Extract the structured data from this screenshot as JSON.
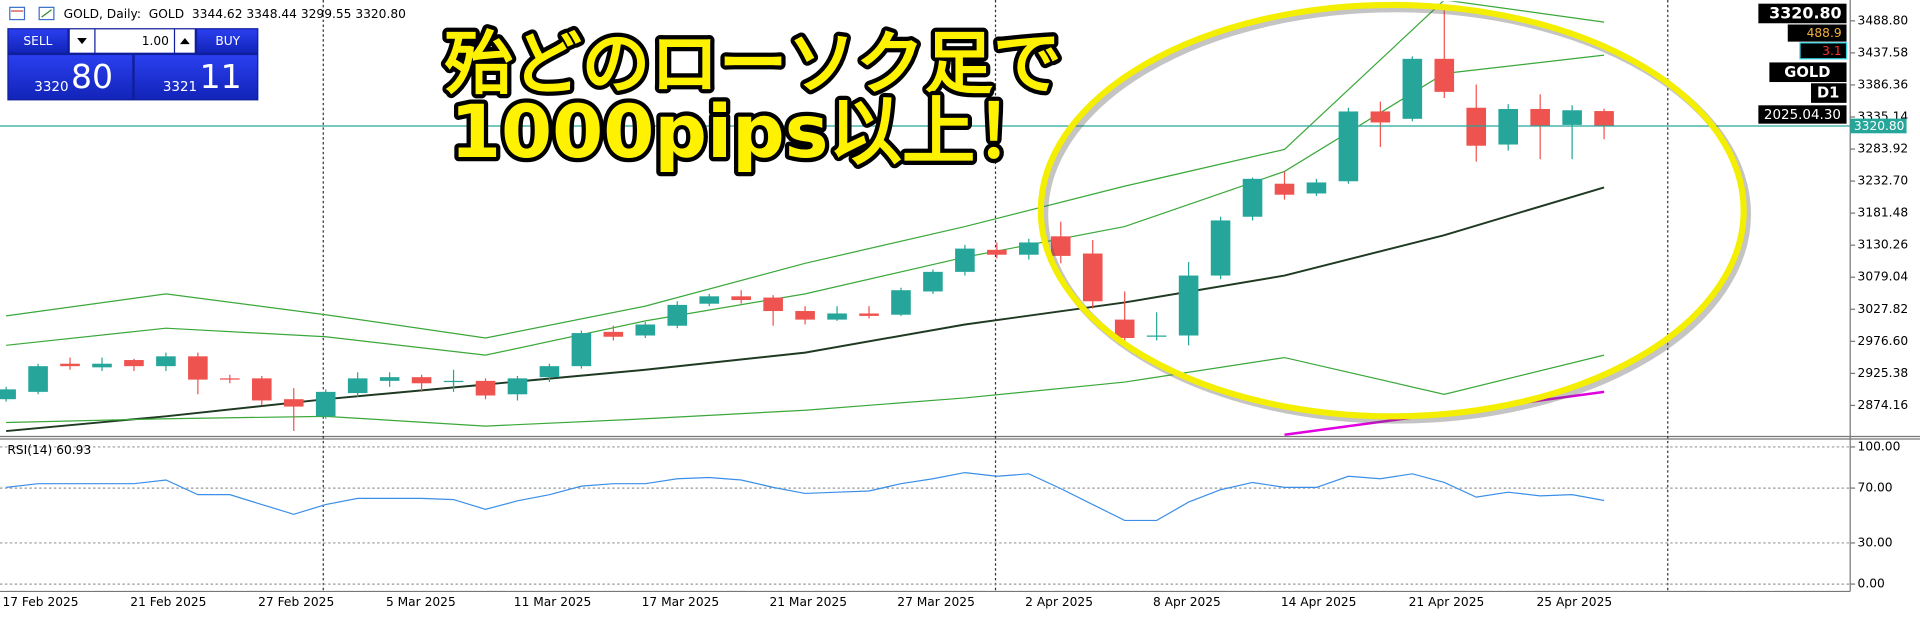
{
  "header": {
    "title": "GOLD, Daily:  GOLD  3344.62 3348.44 3299.55 3320.80"
  },
  "trade": {
    "sell": "SELL",
    "volume": "1.00",
    "buy": "BUY",
    "bid_main": "3320",
    "bid_pips": "80",
    "ask_main": "3321",
    "ask_pips": "11"
  },
  "info": {
    "price": "3320.80",
    "spread": "488.9",
    "change": "3.1",
    "symbol": "GOLD",
    "timeframe": "D1",
    "date": "2025.04.30"
  },
  "caption": {
    "line1": "殆どのローソク足で",
    "line2": "1000pips以上！"
  },
  "chart_data": [
    {
      "type": "candlestick",
      "categories": [
        "17 Feb 2025",
        null,
        null,
        null,
        "21 Feb 2025",
        null,
        null,
        null,
        "27 Feb 2025",
        null,
        null,
        null,
        "5 Mar 2025",
        null,
        null,
        null,
        "11 Mar 2025",
        null,
        null,
        null,
        "17 Mar 2025",
        null,
        null,
        null,
        "21 Mar 2025",
        null,
        null,
        null,
        "27 Mar 2025",
        null,
        null,
        null,
        "2 Apr 2025",
        null,
        null,
        null,
        "8 Apr 2025",
        null,
        null,
        null,
        "14 Apr 2025",
        null,
        null,
        null,
        "21 Apr 2025",
        null,
        null,
        null,
        "25 Apr 2025",
        null,
        null
      ],
      "open": [
        2884.1,
        2895.8,
        2940.8,
        2935,
        2946.7,
        2936.9,
        2952.6,
        2917.4,
        2917.4,
        2884.1,
        2856.7,
        2893.9,
        2913.4,
        2919.3,
        2911.5,
        2913.4,
        2891.9,
        2919.3,
        2936.9,
        2991.7,
        2985.9,
        3001.5,
        3036.7,
        3048.5,
        3046.5,
        3025,
        3011.3,
        3021.1,
        3019.1,
        3056.3,
        3087.6,
        3122.8,
        3115,
        3144.4,
        3116.9,
        3011.3,
        2983.9,
        2985.9,
        3081.7,
        3175.7,
        3228.5,
        3212.9,
        3232.4,
        3344,
        3332.2,
        3428.1,
        3349.9,
        3291.1,
        3347.9,
        3322.5,
        3344.62
      ],
      "high": [
        2903.7,
        2940.8,
        2950.6,
        2950.6,
        2948.7,
        2958.5,
        2958.5,
        2923.2,
        2921.3,
        2901.7,
        2899.8,
        2927.1,
        2927.1,
        2923.2,
        2931.1,
        2917.4,
        2921.3,
        2940.8,
        2993.7,
        3001.5,
        3007.4,
        3040.6,
        3052.4,
        3058.3,
        3050.4,
        3032.8,
        3032.8,
        3032.8,
        3062.2,
        3091.5,
        3130.7,
        3134.6,
        3140.5,
        3167.9,
        3138.5,
        3056.3,
        3023,
        3103.3,
        3175.7,
        3238.3,
        3248.1,
        3236.3,
        3349.9,
        3359.6,
        3432,
        3506.4,
        3387,
        3355.7,
        3371.4,
        3353.8,
        3348.44
      ],
      "low": [
        2880.2,
        2891.9,
        2931.1,
        2929.1,
        2929.1,
        2929.1,
        2891.9,
        2909.5,
        2874.3,
        2833.2,
        2852.8,
        2888,
        2903.7,
        2895.8,
        2895.8,
        2884.1,
        2882.1,
        2911.5,
        2933,
        2978,
        2981.9,
        2997.6,
        3032.8,
        3036.7,
        3001.5,
        3003.5,
        3009.3,
        3013.2,
        3017.2,
        3052.4,
        3081.7,
        3109.1,
        3107.2,
        3101.3,
        3028.9,
        2970.2,
        2978,
        2970.2,
        3075.9,
        3169.8,
        3203.1,
        3208.9,
        3228.5,
        3287.2,
        3328.3,
        3365.5,
        3263.7,
        3281.4,
        3267.7,
        3267.7,
        3299.55
      ],
      "close": [
        2899.8,
        2936.9,
        2936.9,
        2940.8,
        2936.9,
        2952.6,
        2915.4,
        2915.4,
        2882.1,
        2872.3,
        2895.8,
        2917.4,
        2919.3,
        2909.5,
        2913.4,
        2890,
        2917.4,
        2936.9,
        2989.8,
        2983.9,
        3003.5,
        3034.8,
        3048.5,
        3042.6,
        3025,
        3011.3,
        3021.1,
        3017.2,
        3058.3,
        3087.6,
        3124.8,
        3115,
        3134.6,
        3113.1,
        3040.6,
        2981.9,
        2985.9,
        3081.7,
        3169.8,
        3236.3,
        3210.9,
        3230.5,
        3344,
        3326.4,
        3428.1,
        3375.3,
        3289.2,
        3347.9,
        3320.5,
        3345.9,
        3320.8
      ],
      "up_color": "#26a69a",
      "down_color": "#ef5350",
      "ylim": [
        2825.4,
        3518.2
      ],
      "yticks": [
        {
          "value": 3488.8,
          "label": "3488.80"
        },
        {
          "value": 3437.58,
          "label": "3437.58"
        },
        {
          "value": 3386.36,
          "label": "3386.36"
        },
        {
          "value": 3335.14,
          "label": "3335.14"
        },
        {
          "value": 3283.92,
          "label": "3283.92"
        },
        {
          "value": 3232.7,
          "label": "3232.70"
        },
        {
          "value": 3181.48,
          "label": "3181.48"
        },
        {
          "value": 3130.26,
          "label": "3130.26"
        },
        {
          "value": 3079.04,
          "label": "3079.04"
        },
        {
          "value": 3027.82,
          "label": "3027.82"
        },
        {
          "value": 2976.6,
          "label": "2976.60"
        },
        {
          "value": 2925.38,
          "label": "2925.38"
        },
        {
          "value": 2874.16,
          "label": "2874.16"
        }
      ],
      "overlays": [
        {
          "color": "#3aa83a",
          "width": 1,
          "x": [
            0,
            5,
            10,
            15,
            20,
            25,
            30,
            35,
            40,
            45,
            50
          ],
          "values": [
            3017.2,
            3052.4,
            3019.1,
            2981.9,
            3032.8,
            3101.3,
            3160,
            3224.6,
            3283.3,
            3522.1,
            3486.8
          ]
        },
        {
          "color": "#3aa83a",
          "width": 1,
          "x": [
            0,
            5,
            10,
            15,
            20,
            25,
            30,
            35,
            40,
            45,
            50
          ],
          "values": [
            2970.2,
            2997.6,
            2983.9,
            2954.5,
            3009.3,
            3052.4,
            3111.1,
            3160,
            3248.1,
            3404.6,
            3434
          ]
        },
        {
          "color": "#1f3a22",
          "width": 1.6,
          "x": [
            0,
            5,
            10,
            15,
            20,
            25,
            30,
            35,
            40,
            45,
            50
          ],
          "values": [
            2833.2,
            2856.7,
            2884.1,
            2907.6,
            2931.1,
            2958.5,
            3003.5,
            3038.7,
            3081.7,
            3146.3,
            3222.6
          ]
        },
        {
          "color": "#3aa83a",
          "width": 1,
          "x": [
            0,
            5,
            10,
            15,
            20,
            25,
            30,
            35,
            40,
            45,
            50
          ],
          "values": [
            2846.9,
            2852.8,
            2856.7,
            2841.1,
            2852.8,
            2866.5,
            2886.1,
            2911.5,
            2950.6,
            2891.9,
            2954.5
          ]
        },
        {
          "color": "#e000e0",
          "width": 2,
          "x": [
            40,
            50
          ],
          "values": [
            2827.3,
            2895.8
          ]
        }
      ],
      "price_line": {
        "value": 3320.8,
        "label": "3320.80",
        "color": "#26a69a"
      }
    },
    {
      "type": "line",
      "title": "RSI(14) 60.93",
      "color": "#3b8fe8",
      "values": [
        70.5,
        73.2,
        73.2,
        73.2,
        73.2,
        75.9,
        65.2,
        65.2,
        58,
        50.9,
        58,
        62.5,
        62.5,
        62.5,
        61.6,
        54.5,
        60.7,
        65.2,
        71.4,
        73.2,
        73.2,
        76.8,
        77.7,
        75.9,
        70.5,
        66.1,
        67,
        67.9,
        73.2,
        76.8,
        81.3,
        78.6,
        80.4,
        69.6,
        58,
        46.4,
        46.4,
        59.8,
        68.8,
        74.1,
        70.5,
        70.5,
        78.6,
        76.8,
        80.4,
        74.1,
        63.4,
        67,
        64.3,
        65.2,
        60.93
      ],
      "ylim": [
        0,
        100
      ],
      "yticks": [
        {
          "value": 100,
          "label": "100.00"
        },
        {
          "value": 70,
          "label": "70.00"
        },
        {
          "value": 30,
          "label": "30.00"
        },
        {
          "value": 0,
          "label": "0.00"
        }
      ],
      "grid": true
    }
  ]
}
